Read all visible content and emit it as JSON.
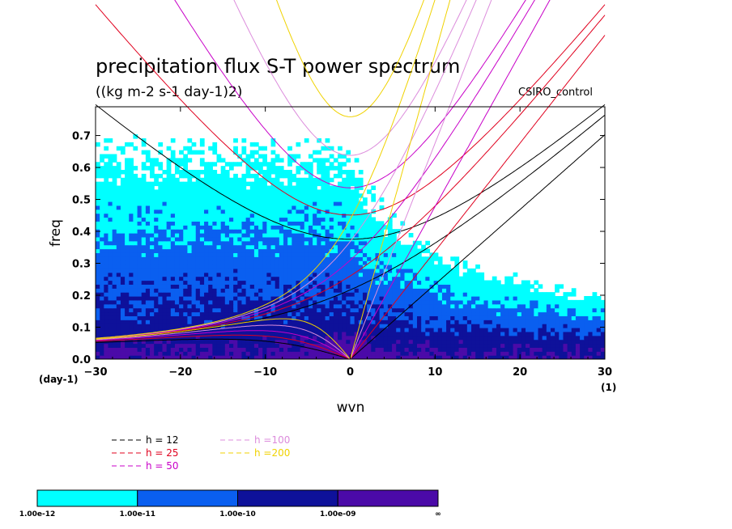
{
  "chart_data": {
    "type": "heatmap",
    "title": "precipitation flux S-T power spectrum",
    "subtitle": "((kg m-2 s-1 day-1)2)",
    "model_label": "CSIRO_control",
    "xlabel": "wvn",
    "ylabel": "freq",
    "x_unit": "(1)",
    "y_unit": "(day-1)",
    "xlim": [
      -30,
      30
    ],
    "ylim": [
      0,
      0.79
    ],
    "x_ticks": [
      -30,
      -20,
      -10,
      0,
      10,
      20,
      30
    ],
    "x_tick_labels": [
      "−30",
      "−20",
      "−10",
      "0",
      "10",
      "20",
      "30"
    ],
    "y_ticks": [
      0.0,
      0.1,
      0.2,
      0.3,
      0.4,
      0.5,
      0.6,
      0.7
    ],
    "y_tick_labels": [
      "0.0",
      "0.1",
      "0.2",
      "0.3",
      "0.4",
      "0.5",
      "0.6",
      "0.7"
    ],
    "color_levels": [
      {
        "from": "1.00e-12",
        "to": "1.00e-11",
        "color": "#00ffff"
      },
      {
        "from": "1.00e-11",
        "to": "1.00e-10",
        "color": "#0a5ff0"
      },
      {
        "from": "1.00e-10",
        "to": "1.00e-09",
        "color": "#0e119a"
      },
      {
        "from": "1.00e-09",
        "to": "∞",
        "color": "#4b0aa8"
      }
    ],
    "colorbar_labels": [
      "1.00e-12",
      "1.00e-11",
      "1.00e-10",
      "1.00e-09",
      "∞"
    ],
    "dispersion_curves": [
      {
        "name": "h = 12",
        "h": 12,
        "color": "#000000"
      },
      {
        "name": "h = 25",
        "h": 25,
        "color": "#e0001e"
      },
      {
        "name": "h = 50",
        "h": 50,
        "color": "#c800c8"
      },
      {
        "name": "h =100",
        "h": 100,
        "color": "#dc8cdc"
      },
      {
        "name": "h =200",
        "h": 200,
        "color": "#f0d200"
      }
    ],
    "regions": [
      {
        "region": "low-frequency band (freq < 0.1)",
        "level": "1.00e-10 to 1.00e-09"
      },
      {
        "region": "wvn near 0, freq < 0.12",
        "level": "1.00e-09 to ∞"
      },
      {
        "region": "freq 0.1–0.4, westward",
        "level": "1.00e-11 to 1.00e-10"
      },
      {
        "region": "freq > 0.45",
        "level": "1.00e-12 to 1.00e-11"
      },
      {
        "region": "upper right, freq > 0.4, wvn > 5",
        "level": "below 1.00e-12"
      }
    ]
  }
}
